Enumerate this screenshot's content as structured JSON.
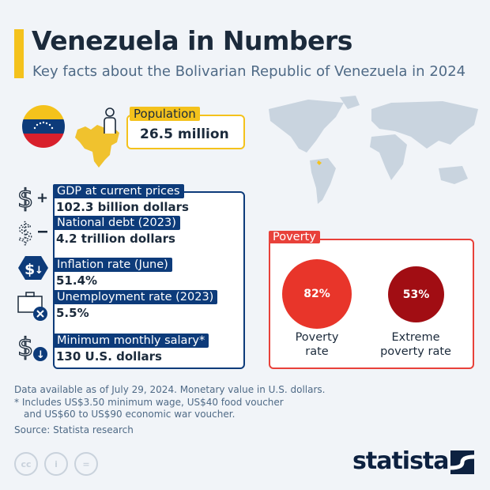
{
  "header": {
    "title": "Venezuela in Numbers",
    "subtitle": "Key facts about the Bolivarian Republic of Venezuela in 2024"
  },
  "population": {
    "label": "Population",
    "value": "26.5 million"
  },
  "stats": [
    {
      "label": "GDP at current prices",
      "value": "102.3 billion dollars",
      "icon": "dollar-plus-icon"
    },
    {
      "label": "National debt (2023)",
      "value": "4.2 trillion dollars",
      "icon": "dollar-minus-icon"
    },
    {
      "label": "Inflation rate (June)",
      "value": "51.4%",
      "icon": "dollar-down-badge-icon"
    },
    {
      "label": "Unemployment rate (2023)",
      "value": "5.5%",
      "icon": "briefcase-x-icon"
    },
    {
      "label": "Minimum monthly salary*",
      "value": "130 U.S. dollars",
      "icon": "dollar-down-icon"
    }
  ],
  "poverty": {
    "label": "Poverty",
    "items": [
      {
        "value": "82%",
        "label1": "Poverty",
        "label2": "rate",
        "percent": 82,
        "color": "#e8352a"
      },
      {
        "value": "53%",
        "label1": "Extreme",
        "label2": "poverty rate",
        "percent": 53,
        "color": "#a10d13"
      }
    ]
  },
  "footer": {
    "line1": "Data available as of July 29, 2024. Monetary value in U.S. dollars.",
    "line2": "* Includes US$3.50 minimum wage, US$40 food voucher",
    "line3": "and US$60 to US$90 economic war voucher.",
    "source": "Source: Statista research"
  },
  "license": {
    "cc": "cc",
    "by": "i",
    "nd": "="
  },
  "brand": {
    "name": "statista"
  },
  "colors": {
    "accent": "#f4c21c",
    "blue": "#0d3b7a",
    "red": "#e8413a"
  }
}
